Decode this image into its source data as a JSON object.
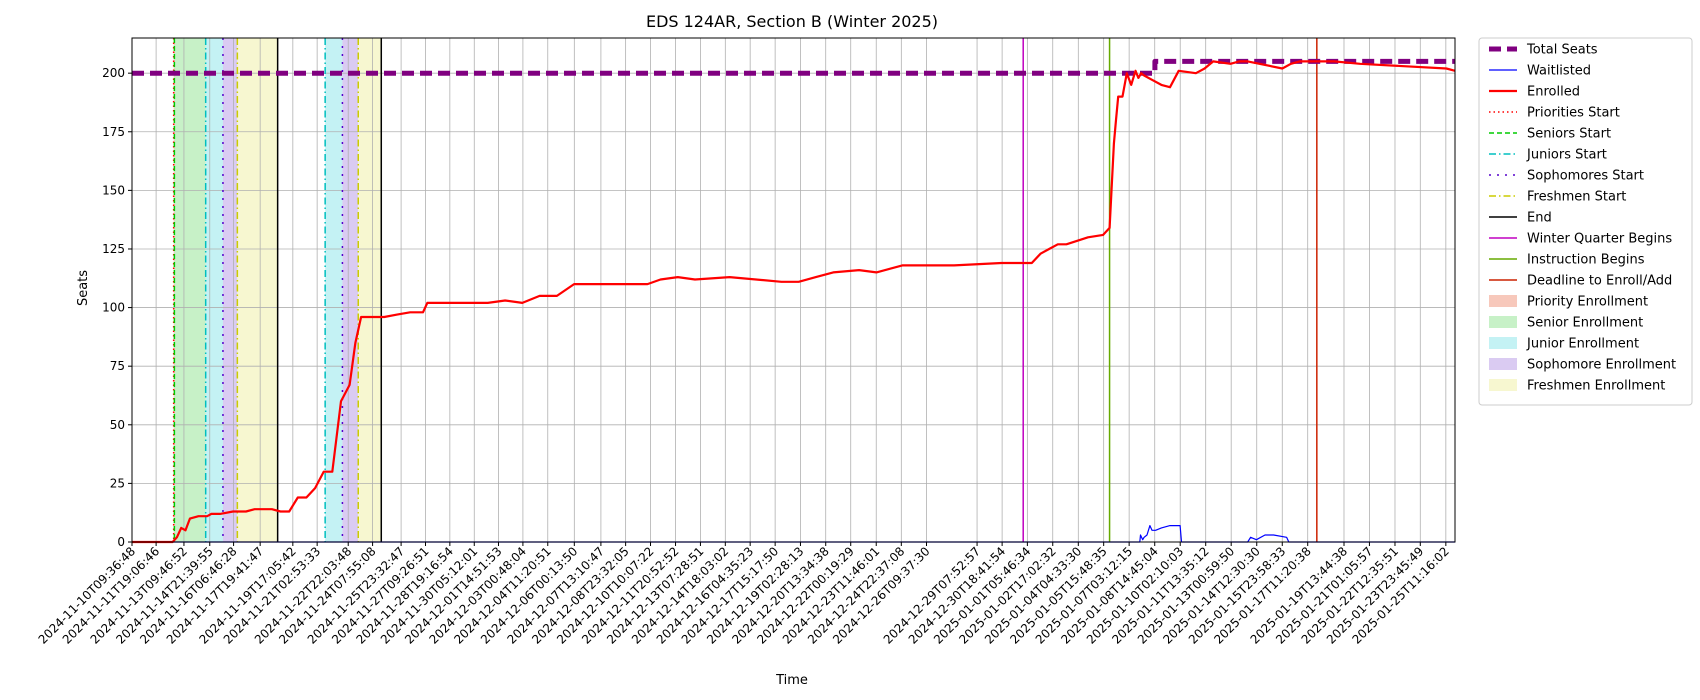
{
  "chart_data": {
    "type": "line",
    "title": "EDS 124AR, Section B (Winter 2025)",
    "xlabel": "Time",
    "ylabel": "Seats",
    "ylim": [
      0,
      215
    ],
    "xlim": [
      "2024-11-10T09:36:48",
      "2025-01-26T00:00:00"
    ],
    "grid": true,
    "legend_position": "outside-right",
    "yticks": [
      0,
      25,
      50,
      75,
      100,
      125,
      150,
      175,
      200
    ],
    "xticks": [
      "2024-11-10T09:36:48",
      "2024-11-11T19:06:46",
      "2024-11-13T09:46:52",
      "2024-11-14T21:39:55",
      "2024-11-16T06:46:28",
      "2024-11-17T19:41:47",
      "2024-11-19T17:05:42",
      "2024-11-21T02:53:33",
      "2024-11-22T22:03:48",
      "2024-11-24T07:55:08",
      "2024-11-25T23:32:47",
      "2024-11-27T09:26:51",
      "2024-11-28T19:16:54",
      "2024-11-30T05:12:01",
      "2024-12-01T14:51:53",
      "2024-12-03T00:48:04",
      "2024-12-04T11:20:51",
      "2024-12-06T00:13:50",
      "2024-12-07T13:10:47",
      "2024-12-08T23:32:05",
      "2024-12-10T10:07:22",
      "2024-12-11T20:52:52",
      "2024-12-13T07:28:51",
      "2024-12-14T18:03:02",
      "2024-12-16T04:35:23",
      "2024-12-17T15:17:50",
      "2024-12-19T02:28:13",
      "2024-12-20T13:34:38",
      "2024-12-22T00:19:29",
      "2024-12-23T11:46:01",
      "2024-12-24T22:37:08",
      "2024-12-26T09:37:30",
      "2024-12-29T07:52:57",
      "2024-12-30T18:41:54",
      "2025-01-01T05:46:34",
      "2025-01-02T17:02:32",
      "2025-01-04T04:33:30",
      "2025-01-05T15:48:35",
      "2025-01-07T03:12:15",
      "2025-01-08T14:45:04",
      "2025-01-10T02:10:03",
      "2025-01-11T13:35:12",
      "2025-01-13T00:59:50",
      "2025-01-14T12:30:30",
      "2025-01-15T23:58:33",
      "2025-01-17T11:20:38",
      "2025-01-19T13:44:38",
      "2025-01-21T01:05:57",
      "2025-01-22T12:35:51",
      "2025-01-23T23:45:49",
      "2025-01-25T11:16:02"
    ],
    "series": [
      {
        "name": "Total Seats",
        "color": "#800080",
        "style": "dashed-thick",
        "x": [
          "2024-11-10T09:36:48",
          "2025-01-08T15:00:00",
          "2025-01-08T15:00:00",
          "2025-01-26T00:00:00"
        ],
        "y": [
          200,
          200,
          205,
          205
        ]
      },
      {
        "name": "Waitlisted",
        "color": "#0000ff",
        "style": "solid-thin",
        "x": [
          "2024-11-10T09:36:48",
          "2025-01-07T18:00:00",
          "2025-01-07T19:00:00",
          "2025-01-07T22:00:00",
          "2025-01-08T00:00:00",
          "2025-01-08T04:00:00",
          "2025-01-08T08:00:00",
          "2025-01-08T11:00:00",
          "2025-01-08T16:00:00",
          "2025-01-09T00:00:00",
          "2025-01-09T12:00:00",
          "2025-01-10T02:00:00",
          "2025-01-10T04:00:00",
          "2025-01-14T00:00:00",
          "2025-01-14T04:00:00",
          "2025-01-14T12:00:00",
          "2025-01-15T00:00:00",
          "2025-01-15T12:00:00",
          "2025-01-16T06:00:00",
          "2025-01-16T09:00:00",
          "2025-01-26T00:00:00"
        ],
        "y": [
          0,
          0,
          3,
          1,
          2,
          3,
          7,
          5,
          5,
          6,
          7,
          7,
          0,
          0,
          2,
          1,
          3,
          3,
          2,
          0,
          0
        ]
      },
      {
        "name": "Enrolled",
        "color": "#ff0000",
        "style": "solid-thick",
        "x": [
          "2024-11-10T09:36:48",
          "2024-11-12T18:00:00",
          "2024-11-13T00:00:00",
          "2024-11-13T06:00:00",
          "2024-11-13T12:00:00",
          "2024-11-13T18:00:00",
          "2024-11-14T06:00:00",
          "2024-11-14T18:00:00",
          "2024-11-15T00:00:00",
          "2024-11-15T12:00:00",
          "2024-11-16T06:00:00",
          "2024-11-17T00:00:00",
          "2024-11-17T12:00:00",
          "2024-11-18T12:00:00",
          "2024-11-19T00:00:00",
          "2024-11-19T12:00:00",
          "2024-11-20T00:00:00",
          "2024-11-20T12:00:00",
          "2024-11-21T00:00:00",
          "2024-11-21T12:00:00",
          "2024-11-22T00:00:00",
          "2024-11-22T12:00:00",
          "2024-11-23T00:00:00",
          "2024-11-23T08:00:00",
          "2024-11-23T16:00:00",
          "2024-11-24T00:00:00",
          "2024-11-24T12:00:00",
          "2024-11-25T00:00:00",
          "2024-11-25T18:00:00",
          "2024-11-26T12:00:00",
          "2024-11-27T06:00:00",
          "2024-11-27T12:00:00",
          "2024-11-28T00:00:00",
          "2024-12-01T00:00:00",
          "2024-12-02T00:00:00",
          "2024-12-03T00:00:00",
          "2024-12-04T00:00:00",
          "2024-12-05T00:00:00",
          "2024-12-06T00:00:00",
          "2024-12-09T00:00:00",
          "2024-12-10T06:00:00",
          "2024-12-11T00:00:00",
          "2024-12-12T00:00:00",
          "2024-12-13T00:00:00",
          "2024-12-15T00:00:00",
          "2024-12-18T00:00:00",
          "2024-12-19T00:00:00",
          "2024-12-20T00:00:00",
          "2024-12-21T00:00:00",
          "2024-12-22T12:00:00",
          "2024-12-23T12:00:00",
          "2024-12-25T00:00:00",
          "2024-12-26T12:00:00",
          "2024-12-28T00:00:00",
          "2024-12-30T18:00:00",
          "2025-01-01T12:00:00",
          "2025-01-02T00:00:00",
          "2025-01-02T12:00:00",
          "2025-01-03T00:00:00",
          "2025-01-03T12:00:00",
          "2025-01-04T18:00:00",
          "2025-01-05T15:00:00",
          "2025-01-06T00:00:00",
          "2025-01-06T06:00:00",
          "2025-01-06T09:00:00",
          "2025-01-06T12:00:00",
          "2025-01-06T18:00:00",
          "2025-01-07T00:00:00",
          "2025-01-07T06:00:00",
          "2025-01-07T12:00:00",
          "2025-01-07T16:00:00",
          "2025-01-07T20:00:00",
          "2025-01-08T00:00:00",
          "2025-01-08T12:00:00",
          "2025-01-09T00:00:00",
          "2025-01-09T12:00:00",
          "2025-01-10T00:00:00",
          "2025-01-11T00:00:00",
          "2025-01-11T12:00:00",
          "2025-01-12T00:00:00",
          "2025-01-13T00:00:00",
          "2025-01-13T12:00:00",
          "2025-01-14T00:00:00",
          "2025-01-16T00:00:00",
          "2025-01-16T12:00:00",
          "2025-01-17T00:00:00",
          "2025-01-19T00:00:00",
          "2025-01-20T12:00:00",
          "2025-01-25T12:00:00",
          "2025-01-26T00:00:00"
        ],
        "y": [
          0,
          0,
          2,
          6,
          5,
          10,
          11,
          11,
          12,
          12,
          13,
          13,
          14,
          14,
          13,
          13,
          19,
          19,
          23,
          30,
          30,
          60,
          67,
          85,
          96,
          96,
          96,
          96,
          97,
          98,
          98,
          102,
          102,
          102,
          103,
          102,
          105,
          105,
          110,
          110,
          110,
          112,
          113,
          112,
          113,
          111,
          111,
          113,
          115,
          116,
          115,
          118,
          118,
          118,
          119,
          119,
          123,
          125,
          127,
          127,
          130,
          131,
          134,
          170,
          180,
          190,
          190,
          200,
          195,
          201,
          198,
          200,
          199,
          197,
          195,
          194,
          201,
          200,
          202,
          205,
          204,
          205,
          205,
          202,
          204,
          205,
          205,
          204,
          202,
          201
        ]
      }
    ],
    "vertical_lines": [
      {
        "name": "Priorities Start",
        "x": "2024-11-12T19:30:00",
        "color": "#ff0000",
        "style": "dotted"
      },
      {
        "name": "Seniors Start",
        "x": "2024-11-12T20:30:00",
        "color": "#00cc00",
        "style": "dashed"
      },
      {
        "name": "Juniors Start",
        "x": "2024-11-14T16:00:00",
        "color": "#00bfbf",
        "style": "dashdot"
      },
      {
        "name": "Sophomores Start",
        "x": "2024-11-15T16:00:00",
        "color": "#5500cc",
        "style": "dashdotted"
      },
      {
        "name": "Freshmen Start",
        "x": "2024-11-16T12:00:00",
        "color": "#cccc00",
        "style": "dashdot"
      },
      {
        "name": "End",
        "x": "2024-11-18T20:00:00",
        "color": "#000000",
        "style": "solid"
      },
      {
        "name": "Juniors Start",
        "x": "2024-11-21T14:00:00",
        "color": "#00bfbf",
        "style": "dashdot"
      },
      {
        "name": "Sophomores Start",
        "x": "2024-11-22T14:00:00",
        "color": "#5500cc",
        "style": "dashdotted"
      },
      {
        "name": "Freshmen Start",
        "x": "2024-11-23T12:00:00",
        "color": "#cccc00",
        "style": "dashdot"
      },
      {
        "name": "End",
        "x": "2024-11-24T20:00:00",
        "color": "#000000",
        "style": "solid"
      },
      {
        "name": "Winter Quarter Begins",
        "x": "2025-01-01T00:00:00",
        "color": "#c000c0",
        "style": "solid"
      },
      {
        "name": "Instruction Begins",
        "x": "2025-01-06T00:00:00",
        "color": "#66aa00",
        "style": "solid"
      },
      {
        "name": "Deadline to Enroll/Add",
        "x": "2025-01-18T00:00:00",
        "color": "#cc2200",
        "style": "solid"
      }
    ],
    "spans": [
      {
        "name": "Priority Enrollment",
        "from": "2024-11-12T19:30:00",
        "to": "2024-11-12T20:30:00",
        "color": "#f4b6a4"
      },
      {
        "name": "Senior Enrollment",
        "from": "2024-11-12T20:30:00",
        "to": "2024-11-14T16:00:00",
        "color": "#b4ecb4"
      },
      {
        "name": "Junior Enrollment",
        "from": "2024-11-14T16:00:00",
        "to": "2024-11-15T16:00:00",
        "color": "#b0eef0"
      },
      {
        "name": "Sophomore Enrollment",
        "from": "2024-11-15T16:00:00",
        "to": "2024-11-16T12:00:00",
        "color": "#cdb9ee"
      },
      {
        "name": "Freshmen Enrollment",
        "from": "2024-11-16T12:00:00",
        "to": "2024-11-18T20:00:00",
        "color": "#f4f4c0"
      },
      {
        "name": "Junior Enrollment",
        "from": "2024-11-21T14:00:00",
        "to": "2024-11-22T14:00:00",
        "color": "#b0eef0"
      },
      {
        "name": "Sophomore Enrollment",
        "from": "2024-11-22T14:00:00",
        "to": "2024-11-23T12:00:00",
        "color": "#cdb9ee"
      },
      {
        "name": "Freshmen Enrollment",
        "from": "2024-11-23T12:00:00",
        "to": "2024-11-24T20:00:00",
        "color": "#f4f4c0"
      }
    ],
    "legend": [
      {
        "label": "Total Seats",
        "kind": "line",
        "color": "#800080",
        "style": "dashed-thick"
      },
      {
        "label": "Waitlisted",
        "kind": "line",
        "color": "#0000ff",
        "style": "solid-thin"
      },
      {
        "label": "Enrolled",
        "kind": "line",
        "color": "#ff0000",
        "style": "solid-thick"
      },
      {
        "label": "Priorities Start",
        "kind": "line",
        "color": "#ff0000",
        "style": "dotted"
      },
      {
        "label": "Seniors Start",
        "kind": "line",
        "color": "#00cc00",
        "style": "dashed"
      },
      {
        "label": "Juniors Start",
        "kind": "line",
        "color": "#00bfbf",
        "style": "dashdot"
      },
      {
        "label": "Sophomores Start",
        "kind": "line",
        "color": "#5500cc",
        "style": "dashdotted"
      },
      {
        "label": "Freshmen Start",
        "kind": "line",
        "color": "#cccc00",
        "style": "dashdot"
      },
      {
        "label": "End",
        "kind": "line",
        "color": "#000000",
        "style": "solid"
      },
      {
        "label": "Winter Quarter Begins",
        "kind": "line",
        "color": "#c000c0",
        "style": "solid"
      },
      {
        "label": "Instruction Begins",
        "kind": "line",
        "color": "#66aa00",
        "style": "solid"
      },
      {
        "label": "Deadline to Enroll/Add",
        "kind": "line",
        "color": "#cc2200",
        "style": "solid"
      },
      {
        "label": "Priority Enrollment",
        "kind": "patch",
        "color": "#f4b6a4"
      },
      {
        "label": "Senior Enrollment",
        "kind": "patch",
        "color": "#b4ecb4"
      },
      {
        "label": "Junior Enrollment",
        "kind": "patch",
        "color": "#b0eef0"
      },
      {
        "label": "Sophomore Enrollment",
        "kind": "patch",
        "color": "#cdb9ee"
      },
      {
        "label": "Freshmen Enrollment",
        "kind": "patch",
        "color": "#f4f4c0"
      }
    ]
  }
}
